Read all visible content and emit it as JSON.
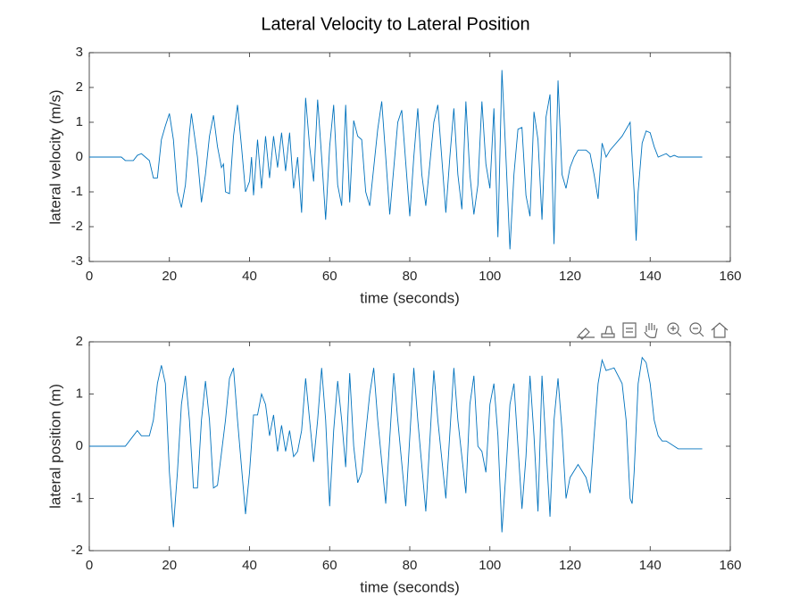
{
  "title": "Lateral Velocity to Lateral Position",
  "chart_data": [
    {
      "type": "line",
      "xlabel": "time (seconds)",
      "ylabel": "lateral velocity (m/s)",
      "color": "#0072bd",
      "xlim": [
        0,
        160
      ],
      "xticks": [
        0,
        20,
        40,
        60,
        80,
        100,
        120,
        140,
        160
      ],
      "ylim": [
        -3,
        3
      ],
      "yticks": [
        -3,
        -2,
        -1,
        0,
        1,
        2,
        3
      ],
      "x": [
        0,
        8,
        9,
        11,
        12,
        13,
        14,
        15,
        16,
        17,
        18,
        19,
        20,
        21,
        22,
        23,
        24,
        25,
        25.5,
        27,
        28,
        29,
        30,
        31,
        32,
        33,
        33.5,
        34,
        35,
        36,
        37,
        38,
        39,
        40,
        40.5,
        41,
        42,
        43,
        44,
        45,
        46,
        47,
        48,
        49,
        50,
        51,
        52,
        53,
        54,
        55,
        56,
        57,
        58,
        59,
        60,
        61,
        62,
        63,
        64,
        65,
        66,
        67,
        68,
        69,
        70,
        72,
        73,
        74,
        75,
        77,
        78,
        80,
        81,
        82,
        83,
        84,
        86,
        87,
        89,
        90,
        91,
        92,
        93,
        94,
        95,
        96,
        97,
        98,
        99,
        100,
        101,
        102,
        103,
        104,
        105,
        106,
        107,
        108,
        109,
        110,
        111,
        112,
        113,
        114,
        115,
        116,
        117,
        118,
        119,
        120,
        121,
        122,
        124,
        125,
        126,
        127,
        128,
        129,
        130,
        133,
        135,
        136,
        136.5,
        137,
        138,
        139,
        140,
        141,
        142,
        144,
        145,
        146,
        147,
        153
      ],
      "values": [
        0,
        0,
        -0.1,
        -0.1,
        0.05,
        0.1,
        0,
        -0.1,
        -0.6,
        -0.6,
        0.5,
        0.9,
        1.25,
        0.5,
        -1,
        -1.45,
        -0.8,
        0.7,
        1.25,
        0,
        -1.3,
        -0.5,
        0.6,
        1.2,
        0.3,
        -0.3,
        -0.2,
        -1,
        -1.05,
        0.6,
        1.5,
        0.3,
        -1,
        -0.7,
        0,
        -1.1,
        0.5,
        -0.9,
        0.6,
        -0.6,
        0.6,
        -0.3,
        0.7,
        -0.4,
        0.7,
        -0.9,
        0,
        -1.6,
        1.7,
        0.3,
        -0.7,
        1.65,
        0,
        -1.8,
        0.3,
        1.5,
        -0.8,
        -1.4,
        1.5,
        -1.3,
        1.05,
        0.6,
        0.5,
        -1,
        -1.4,
        0.8,
        1.6,
        0,
        -1.65,
        1,
        1.35,
        -1.7,
        0,
        1.4,
        -0.5,
        -1.4,
        1,
        1.5,
        -1.6,
        0,
        1.4,
        -0.5,
        -1.5,
        1.6,
        -0.5,
        -1.65,
        -0.8,
        1.6,
        -0.2,
        -0.9,
        1.4,
        -2.3,
        2.5,
        0,
        -2.65,
        -0.5,
        0.8,
        0.85,
        -1.1,
        -1.7,
        1.3,
        0.5,
        -1.8,
        1.15,
        1.8,
        -2.5,
        2.2,
        -0.5,
        -0.9,
        -0.3,
        0,
        0.2,
        0.2,
        0.1,
        -0.5,
        -1.2,
        0.4,
        0,
        0.2,
        0.6,
        1,
        -1,
        -2.4,
        -1,
        0.4,
        0.75,
        0.7,
        0.3,
        0,
        0.1,
        0,
        0.05,
        0,
        0
      ]
    },
    {
      "type": "line",
      "xlabel": "time (seconds)",
      "ylabel": "lateral position (m)",
      "color": "#0072bd",
      "xlim": [
        0,
        160
      ],
      "xticks": [
        0,
        20,
        40,
        60,
        80,
        100,
        120,
        140,
        160
      ],
      "ylim": [
        -2,
        2
      ],
      "yticks": [
        -2,
        -1,
        0,
        1,
        2
      ],
      "x": [
        0,
        8,
        9,
        11,
        12,
        13,
        15,
        16,
        17,
        18,
        19,
        20,
        21,
        22,
        23,
        24,
        25,
        26,
        27,
        28,
        29,
        30,
        31,
        32,
        34,
        35,
        36,
        37,
        39,
        40,
        41,
        42,
        43,
        44,
        45,
        46,
        47,
        48,
        49,
        50,
        51,
        52,
        53,
        54,
        55,
        56,
        57,
        58,
        59,
        60,
        61,
        62,
        63,
        64,
        65,
        66,
        67,
        68,
        70,
        71,
        72,
        74,
        76,
        77,
        79,
        81,
        82,
        84,
        86,
        87,
        89,
        91,
        92,
        94,
        95,
        96,
        97,
        98,
        99,
        100,
        101,
        102,
        103,
        104,
        105,
        106,
        107,
        108,
        109,
        110,
        111,
        112,
        113,
        114,
        115,
        116,
        117,
        118,
        119,
        120,
        122,
        124,
        125,
        126,
        127,
        128,
        129,
        131,
        133,
        134,
        135,
        135.5,
        136,
        137,
        138,
        139,
        140,
        141,
        142,
        143,
        144,
        146,
        147,
        153
      ],
      "values": [
        0,
        0,
        0,
        0.2,
        0.3,
        0.2,
        0.2,
        0.5,
        1.2,
        1.55,
        1.2,
        -0.5,
        -1.55,
        -0.5,
        0.8,
        1.35,
        0.5,
        -0.8,
        -0.8,
        0.5,
        1.25,
        0.5,
        -0.8,
        -0.75,
        0.5,
        1.3,
        1.5,
        0.5,
        -1.3,
        -0.5,
        0.6,
        0.6,
        1,
        0.8,
        0.2,
        0.6,
        -0.1,
        0.4,
        -0.1,
        0.3,
        -0.2,
        -0.1,
        0.3,
        1.3,
        0.5,
        -0.3,
        0.5,
        1.5,
        0.5,
        -1.15,
        0.3,
        1.25,
        0.5,
        -0.4,
        1.4,
        0,
        -0.7,
        -0.5,
        1,
        1.5,
        0.5,
        -1.1,
        1.4,
        0.5,
        -1.15,
        1.5,
        0.5,
        -1.25,
        1.45,
        0.5,
        -1,
        1.5,
        0.5,
        -0.9,
        0.8,
        1.35,
        0,
        -0.1,
        -0.5,
        0.8,
        1.2,
        0.2,
        -1.65,
        -0.5,
        0.8,
        1.2,
        0,
        -1.2,
        -0.2,
        1.35,
        0.2,
        -1.25,
        1.35,
        0,
        -1.35,
        0.5,
        1.3,
        0.3,
        -1,
        -0.6,
        -0.35,
        -0.6,
        -0.9,
        0.2,
        1.2,
        1.65,
        1.45,
        1.5,
        1.2,
        0.5,
        -1,
        -1.1,
        -0.5,
        1.2,
        1.7,
        1.6,
        1.2,
        0.5,
        0.2,
        0.1,
        0.1,
        0,
        -0.05,
        -0.05
      ]
    }
  ]
}
